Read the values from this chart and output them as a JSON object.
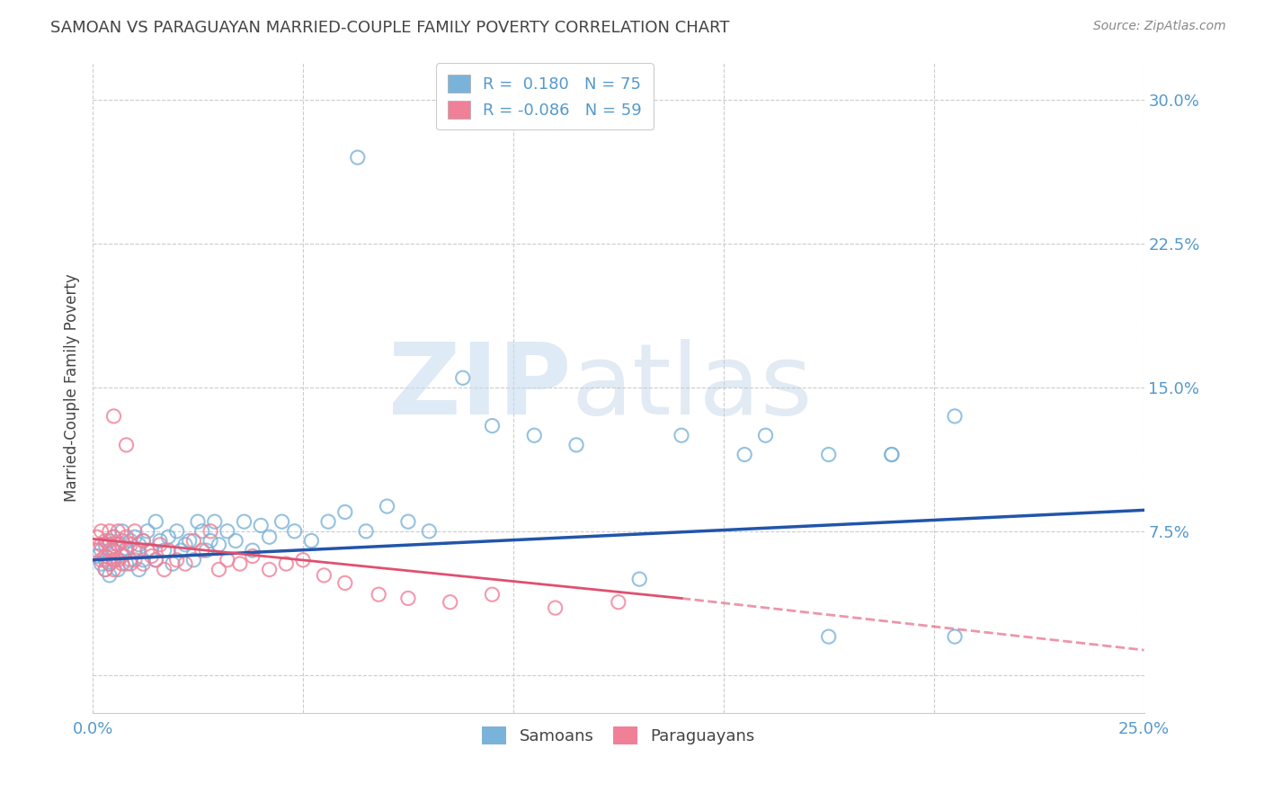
{
  "title": "SAMOAN VS PARAGUAYAN MARRIED-COUPLE FAMILY POVERTY CORRELATION CHART",
  "source": "Source: ZipAtlas.com",
  "ylabel": "Married-Couple Family Poverty",
  "xlim": [
    0.0,
    0.25
  ],
  "ylim": [
    -0.02,
    0.32
  ],
  "background_color": "#ffffff",
  "grid_color": "#cccccc",
  "title_color": "#444444",
  "samoan_color": "#7ab3d9",
  "paraguayan_color": "#f08098",
  "samoan_line_color": "#2255aa",
  "paraguayan_line_color": "#e05070",
  "right_ytick_color": "#5599cc",
  "xtick_color": "#5599cc",
  "legend_label_samoan": "R =  0.180   N = 75",
  "legend_label_para": "R = -0.086   N = 59",
  "samoan_points_x": [
    0.001,
    0.002,
    0.002,
    0.003,
    0.003,
    0.003,
    0.004,
    0.004,
    0.004,
    0.005,
    0.005,
    0.005,
    0.006,
    0.006,
    0.007,
    0.007,
    0.008,
    0.008,
    0.009,
    0.009,
    0.01,
    0.01,
    0.011,
    0.011,
    0.012,
    0.012,
    0.013,
    0.014,
    0.015,
    0.015,
    0.016,
    0.017,
    0.018,
    0.019,
    0.02,
    0.021,
    0.022,
    0.023,
    0.024,
    0.025,
    0.026,
    0.027,
    0.028,
    0.029,
    0.03,
    0.032,
    0.034,
    0.036,
    0.038,
    0.04,
    0.042,
    0.045,
    0.048,
    0.052,
    0.056,
    0.06,
    0.065,
    0.07,
    0.075,
    0.08,
    0.063,
    0.088,
    0.095,
    0.105,
    0.115,
    0.14,
    0.155,
    0.16,
    0.175,
    0.19,
    0.205,
    0.205,
    0.175,
    0.19,
    0.13
  ],
  "samoan_points_y": [
    0.062,
    0.058,
    0.065,
    0.055,
    0.068,
    0.06,
    0.052,
    0.07,
    0.058,
    0.065,
    0.06,
    0.072,
    0.055,
    0.068,
    0.063,
    0.075,
    0.058,
    0.066,
    0.06,
    0.07,
    0.065,
    0.072,
    0.068,
    0.055,
    0.07,
    0.06,
    0.075,
    0.065,
    0.06,
    0.08,
    0.07,
    0.065,
    0.072,
    0.058,
    0.075,
    0.065,
    0.068,
    0.07,
    0.06,
    0.08,
    0.075,
    0.065,
    0.07,
    0.08,
    0.068,
    0.075,
    0.07,
    0.08,
    0.065,
    0.078,
    0.072,
    0.08,
    0.075,
    0.07,
    0.08,
    0.085,
    0.075,
    0.088,
    0.08,
    0.075,
    0.27,
    0.155,
    0.13,
    0.125,
    0.12,
    0.125,
    0.115,
    0.125,
    0.115,
    0.115,
    0.135,
    0.02,
    0.02,
    0.115,
    0.05
  ],
  "paraguayan_points_x": [
    0.001,
    0.001,
    0.002,
    0.002,
    0.002,
    0.003,
    0.003,
    0.003,
    0.004,
    0.004,
    0.004,
    0.004,
    0.005,
    0.005,
    0.005,
    0.005,
    0.006,
    0.006,
    0.006,
    0.007,
    0.007,
    0.007,
    0.008,
    0.008,
    0.009,
    0.009,
    0.01,
    0.01,
    0.011,
    0.012,
    0.012,
    0.013,
    0.014,
    0.015,
    0.016,
    0.017,
    0.018,
    0.02,
    0.022,
    0.024,
    0.026,
    0.028,
    0.03,
    0.032,
    0.035,
    0.038,
    0.042,
    0.046,
    0.05,
    0.055,
    0.06,
    0.068,
    0.075,
    0.085,
    0.095,
    0.11,
    0.125,
    0.005,
    0.008
  ],
  "paraguayan_points_y": [
    0.065,
    0.072,
    0.06,
    0.075,
    0.068,
    0.055,
    0.07,
    0.062,
    0.065,
    0.058,
    0.068,
    0.075,
    0.06,
    0.072,
    0.055,
    0.065,
    0.068,
    0.06,
    0.075,
    0.062,
    0.07,
    0.058,
    0.065,
    0.072,
    0.058,
    0.068,
    0.06,
    0.075,
    0.065,
    0.07,
    0.058,
    0.065,
    0.062,
    0.06,
    0.068,
    0.055,
    0.065,
    0.06,
    0.058,
    0.07,
    0.065,
    0.075,
    0.055,
    0.06,
    0.058,
    0.062,
    0.055,
    0.058,
    0.06,
    0.052,
    0.048,
    0.042,
    0.04,
    0.038,
    0.042,
    0.035,
    0.038,
    0.135,
    0.12
  ],
  "samoan_line_x": [
    0.0,
    0.25
  ],
  "samoan_line_y": [
    0.06,
    0.086
  ],
  "para_solid_line_x": [
    0.0,
    0.14
  ],
  "para_solid_line_y": [
    0.071,
    0.04
  ],
  "para_dash_line_x": [
    0.14,
    0.25
  ],
  "para_dash_line_y": [
    0.04,
    0.013
  ],
  "watermark_zip": "ZIP",
  "watermark_atlas": "atlas"
}
